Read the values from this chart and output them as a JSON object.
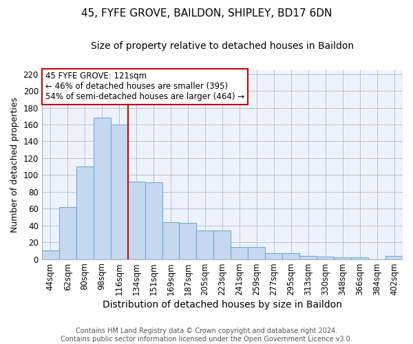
{
  "title": "45, FYFE GROVE, BAILDON, SHIPLEY, BD17 6DN",
  "subtitle": "Size of property relative to detached houses in Baildon",
  "xlabel": "Distribution of detached houses by size in Baildon",
  "ylabel": "Number of detached properties",
  "categories": [
    "44sqm",
    "62sqm",
    "80sqm",
    "98sqm",
    "116sqm",
    "134sqm",
    "151sqm",
    "169sqm",
    "187sqm",
    "205sqm",
    "223sqm",
    "241sqm",
    "259sqm",
    "277sqm",
    "295sqm",
    "313sqm",
    "330sqm",
    "348sqm",
    "366sqm",
    "384sqm",
    "402sqm"
  ],
  "values": [
    10,
    62,
    110,
    168,
    160,
    92,
    91,
    44,
    43,
    34,
    34,
    14,
    14,
    7,
    7,
    4,
    3,
    2,
    2,
    0,
    4
  ],
  "bar_color": "#c6d9f0",
  "bar_edge_color": "#6aaed6",
  "vline_color": "#cc0000",
  "vline_index": 4.5,
  "ylim": [
    0,
    225
  ],
  "yticks": [
    0,
    20,
    40,
    60,
    80,
    100,
    120,
    140,
    160,
    180,
    200,
    220
  ],
  "annotation_title": "45 FYFE GROVE: 121sqm",
  "annotation_line1": "← 46% of detached houses are smaller (395)",
  "annotation_line2": "54% of semi-detached houses are larger (464) →",
  "annotation_box_color": "#ffffff",
  "annotation_box_edge": "#cc0000",
  "footer_line1": "Contains HM Land Registry data © Crown copyright and database right 2024.",
  "footer_line2": "Contains public sector information licensed under the Open Government Licence v3.0.",
  "title_fontsize": 11,
  "subtitle_fontsize": 10,
  "xlabel_fontsize": 10,
  "ylabel_fontsize": 9,
  "tick_fontsize": 8.5,
  "footer_fontsize": 7,
  "annotation_fontsize": 8.5
}
